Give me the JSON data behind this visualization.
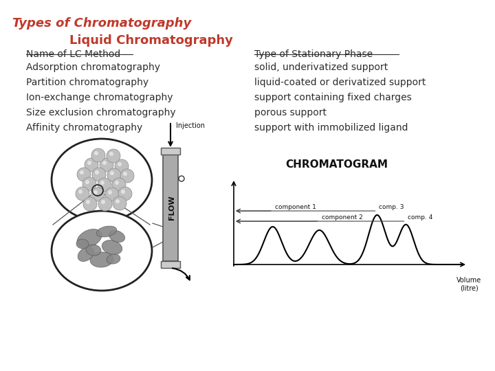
{
  "title": "Types of Chromatography",
  "subtitle": "Liquid Chromatography",
  "title_color": "#C0392B",
  "subtitle_color": "#C0392B",
  "bg_color": "#FFFFFF",
  "col1_header": "Name of LC Method",
  "col2_header": "Type of Stationary Phase",
  "col1_items": [
    "Adsorption chromatography",
    "Partition chromatography",
    "Ion-exchange chromatography",
    "Size exclusion chromatography",
    "Affinity chromatography"
  ],
  "col2_items": [
    "solid, underivatized support",
    "liquid-coated or derivatized support",
    "support containing fixed charges",
    "porous support",
    "support with immobilized ligand"
  ],
  "text_color": "#2C2C2C",
  "header_color": "#2C2C2C",
  "chromatogram_label": "CHROMATOGRAM",
  "injection_label": "Injection",
  "flow_label": "FLOW",
  "volume_label": "Volume\n(litre)",
  "component_labels": [
    "component 1",
    "component 2",
    "comp. 3",
    "comp. 4"
  ]
}
